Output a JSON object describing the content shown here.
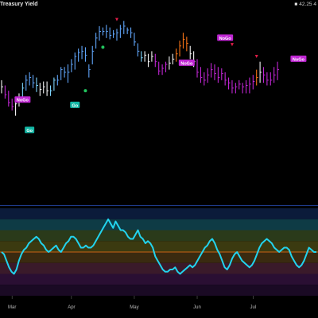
{
  "header": {
    "title": "Treasury Yield",
    "readout_value": "42.25",
    "readout_extra": "4"
  },
  "colors": {
    "background": "#000000",
    "divider": "#1e3a8a",
    "strong_up": "#60a5fa",
    "weak_up": "#7dd3fc",
    "neutral": "#f4f4f5",
    "weak_down": "#f97316",
    "strong_down": "#c026d3",
    "go_label": "#14b8a6",
    "nogo_label": "#c026d3",
    "oscillator_line": "#22d3ee",
    "zero_line": "#f97316"
  },
  "chart_data": [
    {
      "type": "candlestick",
      "title": "Treasury Yield",
      "x_labels": [
        "Mar",
        "Apr",
        "May",
        "Jun",
        "Jul"
      ],
      "x_label_positions": [
        3,
        20,
        38,
        56,
        72
      ],
      "ylim": [
        33,
        47
      ],
      "bars": [
        {
          "x": 0,
          "h": 42.0,
          "l": 41.0,
          "c": 41.5,
          "t": "n"
        },
        {
          "x": 1,
          "h": 41.6,
          "l": 40.6,
          "c": 40.9,
          "t": "sd"
        },
        {
          "x": 2,
          "h": 41.2,
          "l": 40.0,
          "c": 40.3,
          "t": "sd"
        },
        {
          "x": 3,
          "h": 40.6,
          "l": 39.7,
          "c": 40.0,
          "t": "sd"
        },
        {
          "x": 4,
          "h": 40.6,
          "l": 39.3,
          "c": 40.2,
          "t": "n"
        },
        {
          "x": 5,
          "h": 41.0,
          "l": 40.0,
          "c": 40.6,
          "t": "n"
        },
        {
          "x": 6,
          "h": 41.8,
          "l": 40.6,
          "c": 41.4,
          "t": "wu"
        },
        {
          "x": 7,
          "h": 42.4,
          "l": 41.2,
          "c": 42.0,
          "t": "su"
        },
        {
          "x": 8,
          "h": 42.6,
          "l": 41.6,
          "c": 42.2,
          "t": "su"
        },
        {
          "x": 9,
          "h": 42.4,
          "l": 41.4,
          "c": 41.8,
          "t": "su"
        },
        {
          "x": 10,
          "h": 42.2,
          "l": 41.1,
          "c": 41.6,
          "t": "wu"
        },
        {
          "x": 11,
          "h": 41.8,
          "l": 40.8,
          "c": 41.3,
          "t": "n"
        },
        {
          "x": 12,
          "h": 41.9,
          "l": 41.0,
          "c": 41.5,
          "t": "n"
        },
        {
          "x": 13,
          "h": 41.9,
          "l": 40.8,
          "c": 41.2,
          "t": "n"
        },
        {
          "x": 14,
          "h": 41.6,
          "l": 40.8,
          "c": 41.2,
          "t": "wu"
        },
        {
          "x": 15,
          "h": 42.2,
          "l": 41.2,
          "c": 42.0,
          "t": "wu"
        },
        {
          "x": 16,
          "h": 42.4,
          "l": 41.6,
          "c": 42.0,
          "t": "su"
        },
        {
          "x": 17,
          "h": 43.0,
          "l": 42.0,
          "c": 42.8,
          "t": "su"
        },
        {
          "x": 18,
          "h": 43.0,
          "l": 42.2,
          "c": 42.6,
          "t": "su"
        },
        {
          "x": 19,
          "h": 43.2,
          "l": 41.8,
          "c": 42.6,
          "t": "su"
        },
        {
          "x": 20,
          "h": 43.6,
          "l": 42.6,
          "c": 43.2,
          "t": "su"
        },
        {
          "x": 21,
          "h": 44.1,
          "l": 42.8,
          "c": 43.8,
          "t": "su"
        },
        {
          "x": 22,
          "h": 44.4,
          "l": 43.4,
          "c": 44.1,
          "t": "su"
        },
        {
          "x": 23,
          "h": 44.6,
          "l": 43.6,
          "c": 44.2,
          "t": "su"
        },
        {
          "x": 24,
          "h": 44.5,
          "l": 43.4,
          "c": 43.9,
          "t": "su"
        },
        {
          "x": 25,
          "h": 43.2,
          "l": 42.2,
          "c": 42.8,
          "t": "su"
        },
        {
          "x": 26,
          "h": 44.6,
          "l": 43.2,
          "c": 44.2,
          "t": "su"
        },
        {
          "x": 27,
          "h": 45.6,
          "l": 44.4,
          "c": 45.2,
          "t": "su"
        },
        {
          "x": 28,
          "h": 46.1,
          "l": 45.0,
          "c": 45.7,
          "t": "su"
        },
        {
          "x": 29,
          "h": 46.0,
          "l": 45.4,
          "c": 45.7,
          "t": "su"
        },
        {
          "x": 30,
          "h": 46.2,
          "l": 45.2,
          "c": 45.7,
          "t": "su"
        },
        {
          "x": 31,
          "h": 46.0,
          "l": 45.1,
          "c": 45.4,
          "t": "su"
        },
        {
          "x": 32,
          "h": 45.8,
          "l": 45.2,
          "c": 45.5,
          "t": "su"
        },
        {
          "x": 33,
          "h": 45.9,
          "l": 45.0,
          "c": 45.6,
          "t": "su"
        },
        {
          "x": 34,
          "h": 46.2,
          "l": 45.2,
          "c": 45.9,
          "t": "su"
        },
        {
          "x": 35,
          "h": 46.5,
          "l": 45.5,
          "c": 46.1,
          "t": "su"
        },
        {
          "x": 36,
          "h": 46.0,
          "l": 45.5,
          "c": 45.8,
          "t": "su"
        },
        {
          "x": 37,
          "h": 46.0,
          "l": 45.2,
          "c": 45.6,
          "t": "su"
        },
        {
          "x": 38,
          "h": 45.6,
          "l": 44.6,
          "c": 44.9,
          "t": "su"
        },
        {
          "x": 39,
          "h": 44.8,
          "l": 43.8,
          "c": 44.2,
          "t": "su"
        },
        {
          "x": 40,
          "h": 44.2,
          "l": 43.4,
          "c": 43.7,
          "t": "wu"
        },
        {
          "x": 41,
          "h": 44.2,
          "l": 43.4,
          "c": 43.9,
          "t": "n"
        },
        {
          "x": 42,
          "h": 44.0,
          "l": 43.0,
          "c": 43.4,
          "t": "n"
        },
        {
          "x": 43,
          "h": 44.2,
          "l": 43.4,
          "c": 43.8,
          "t": "n"
        },
        {
          "x": 44,
          "h": 44.0,
          "l": 43.0,
          "c": 43.4,
          "t": "sd"
        },
        {
          "x": 45,
          "h": 43.4,
          "l": 42.4,
          "c": 42.7,
          "t": "sd"
        },
        {
          "x": 46,
          "h": 43.2,
          "l": 42.4,
          "c": 42.9,
          "t": "sd"
        },
        {
          "x": 47,
          "h": 43.4,
          "l": 42.6,
          "c": 43.2,
          "t": "sd"
        },
        {
          "x": 48,
          "h": 43.8,
          "l": 42.8,
          "c": 43.3,
          "t": "n"
        },
        {
          "x": 49,
          "h": 44.0,
          "l": 43.2,
          "c": 43.6,
          "t": "n"
        },
        {
          "x": 50,
          "h": 44.4,
          "l": 43.4,
          "c": 44.0,
          "t": "wd"
        },
        {
          "x": 51,
          "h": 45.0,
          "l": 43.8,
          "c": 44.6,
          "t": "wd"
        },
        {
          "x": 52,
          "h": 45.6,
          "l": 44.4,
          "c": 45.1,
          "t": "wd"
        },
        {
          "x": 53,
          "h": 45.3,
          "l": 44.2,
          "c": 44.8,
          "t": "wd"
        },
        {
          "x": 54,
          "h": 44.6,
          "l": 43.6,
          "c": 44.0,
          "t": "n"
        },
        {
          "x": 55,
          "h": 44.2,
          "l": 43.0,
          "c": 43.4,
          "t": "n"
        },
        {
          "x": 56,
          "h": 43.6,
          "l": 42.2,
          "c": 42.6,
          "t": "sd"
        },
        {
          "x": 57,
          "h": 43.0,
          "l": 41.8,
          "c": 42.2,
          "t": "sd"
        },
        {
          "x": 58,
          "h": 42.6,
          "l": 41.6,
          "c": 42.0,
          "t": "sd"
        },
        {
          "x": 59,
          "h": 42.9,
          "l": 41.8,
          "c": 42.4,
          "t": "sd"
        },
        {
          "x": 60,
          "h": 43.3,
          "l": 42.2,
          "c": 42.8,
          "t": "sd"
        },
        {
          "x": 61,
          "h": 43.2,
          "l": 42.0,
          "c": 42.5,
          "t": "sd"
        },
        {
          "x": 62,
          "h": 43.0,
          "l": 41.8,
          "c": 42.2,
          "t": "sd"
        },
        {
          "x": 63,
          "h": 42.9,
          "l": 42.0,
          "c": 42.5,
          "t": "sd"
        },
        {
          "x": 64,
          "h": 42.6,
          "l": 41.6,
          "c": 42.0,
          "t": "sd"
        },
        {
          "x": 65,
          "h": 42.2,
          "l": 41.3,
          "c": 41.8,
          "t": "sd"
        },
        {
          "x": 66,
          "h": 42.0,
          "l": 41.0,
          "c": 41.4,
          "t": "sd"
        },
        {
          "x": 67,
          "h": 41.8,
          "l": 41.0,
          "c": 41.5,
          "t": "sd"
        },
        {
          "x": 68,
          "h": 42.0,
          "l": 41.3,
          "c": 41.7,
          "t": "sd"
        },
        {
          "x": 69,
          "h": 41.8,
          "l": 41.0,
          "c": 41.5,
          "t": "sd"
        },
        {
          "x": 70,
          "h": 42.0,
          "l": 41.0,
          "c": 41.6,
          "t": "sd"
        },
        {
          "x": 71,
          "h": 42.2,
          "l": 41.0,
          "c": 41.7,
          "t": "sd"
        },
        {
          "x": 72,
          "h": 42.4,
          "l": 41.3,
          "c": 41.9,
          "t": "sd"
        },
        {
          "x": 73,
          "h": 42.8,
          "l": 41.6,
          "c": 42.2,
          "t": "wd"
        },
        {
          "x": 74,
          "h": 43.4,
          "l": 41.8,
          "c": 42.6,
          "t": "n"
        },
        {
          "x": 75,
          "h": 43.0,
          "l": 41.8,
          "c": 42.4,
          "t": "sd"
        },
        {
          "x": 76,
          "h": 42.6,
          "l": 41.6,
          "c": 42.0,
          "t": "sd"
        },
        {
          "x": 77,
          "h": 42.6,
          "l": 41.6,
          "c": 42.0,
          "t": "sd"
        },
        {
          "x": 78,
          "h": 43.0,
          "l": 41.8,
          "c": 42.4,
          "t": "sd"
        },
        {
          "x": 79,
          "h": 43.4,
          "l": 42.0,
          "c": 42.8,
          "t": "sd"
        }
      ],
      "labels": [
        {
          "text": "NoGo",
          "x": 6,
          "y": 40.5,
          "kind": "nogo"
        },
        {
          "text": "Go",
          "x": 8,
          "y": 38.2,
          "kind": "go"
        },
        {
          "text": "Go",
          "x": 21,
          "y": 40.1,
          "kind": "go"
        },
        {
          "text": "NoGo",
          "x": 53,
          "y": 43.3,
          "kind": "nogo"
        },
        {
          "text": "NoGo",
          "x": 64,
          "y": 45.2,
          "kind": "nogo"
        },
        {
          "text": "NoGo",
          "x": 85,
          "y": 43.6,
          "kind": "nogo"
        }
      ],
      "markers": [
        {
          "x": 33,
          "y": 46.6,
          "kind": "nogo",
          "shape": "down"
        },
        {
          "x": 66,
          "y": 44.7,
          "kind": "nogo",
          "shape": "down"
        },
        {
          "x": 73,
          "y": 43.8,
          "kind": "nogo",
          "shape": "down"
        },
        {
          "x": 29,
          "y": 44.5,
          "kind": "go",
          "shape": "dot"
        },
        {
          "x": 24,
          "y": 41.2,
          "kind": "go",
          "shape": "dot"
        }
      ]
    },
    {
      "type": "line",
      "title": "Oscillator",
      "ylim": [
        -4,
        4
      ],
      "zero": 0,
      "series": [
        {
          "values": [
            0.0,
            -0.2,
            -0.8,
            -1.4,
            -1.8,
            -2.0,
            -1.6,
            -0.8,
            -0.2,
            0.2,
            0.4,
            0.8,
            1.0,
            1.2,
            1.4,
            1.2,
            0.8,
            0.6,
            0.2,
            0.0,
            0.2,
            0.4,
            0.6,
            0.2,
            0.0,
            0.4,
            0.8,
            1.0,
            1.4,
            1.4,
            1.2,
            0.8,
            0.4,
            0.4,
            0.6,
            0.4,
            0.4,
            0.6,
            1.0,
            1.4,
            1.8,
            2.2,
            2.6,
            3.0,
            2.6,
            2.2,
            2.8,
            2.4,
            2.0,
            2.0,
            1.8,
            1.4,
            1.2,
            1.2,
            1.6,
            2.0,
            1.4,
            1.2,
            0.8,
            1.0,
            0.8,
            0.4,
            -0.4,
            -0.8,
            -1.2,
            -1.6,
            -1.8,
            -1.8,
            -1.6,
            -1.6,
            -1.4,
            -1.8,
            -2.0,
            -1.8,
            -1.6,
            -1.4,
            -1.2,
            -1.4,
            -1.2,
            -0.8,
            -0.4,
            0.0,
            0.4,
            0.6,
            1.0,
            1.2,
            0.8,
            0.2,
            -0.2,
            -0.8,
            -1.4,
            -1.6,
            -1.2,
            -0.6,
            -0.2,
            0.0,
            -0.4,
            -0.8,
            -1.0,
            -1.2,
            -1.4,
            -1.2,
            -0.8,
            -0.2,
            0.4,
            0.8,
            1.0,
            1.2,
            1.0,
            0.8,
            0.4,
            0.2,
            0.0,
            0.2,
            0.4,
            0.4,
            0.2,
            -0.4,
            -0.8,
            -1.2,
            -1.4,
            -1.2,
            -0.8,
            -0.2,
            0.4,
            0.2,
            0.0,
            0.0
          ]
        }
      ]
    }
  ]
}
